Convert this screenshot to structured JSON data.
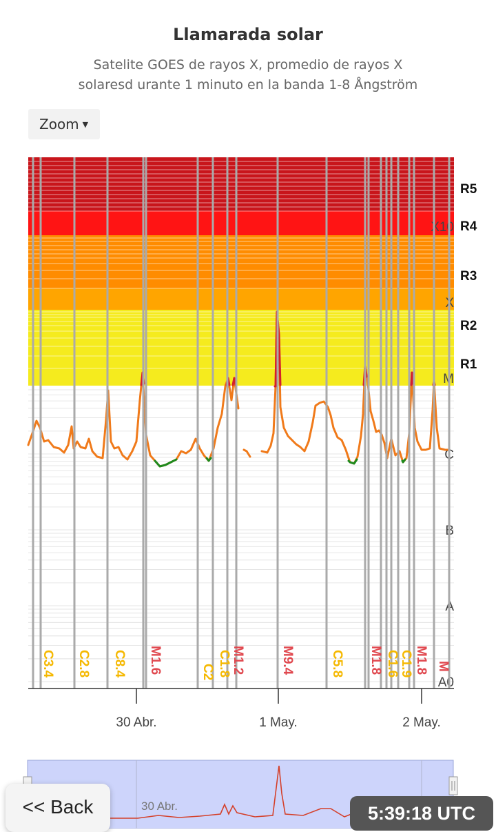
{
  "chart_data": {
    "type": "line",
    "title": "Llamarada solar",
    "subtitle_line1": "Satelite GOES de rayos X, promedio de rayos X",
    "subtitle_line2": "solaresd urante 1 minuto en la banda 1-8 Ångström",
    "y_scale": "log",
    "ylim": [
      "A0",
      "X10+"
    ],
    "y_ticks": [
      "A0",
      "A",
      "B",
      "C",
      "M",
      "X",
      "X10"
    ],
    "r_levels": [
      "R1",
      "R2",
      "R3",
      "R4",
      "R5"
    ],
    "x_ticks": [
      "30 Abr.",
      "1 May.",
      "2 May."
    ],
    "grid": true,
    "colors": {
      "line": "#f07a1a",
      "line_above_m": "#d41f2a",
      "line_low": "#1e8a1e",
      "band_r5": "#c8151b",
      "band_r4": "#ff1414",
      "band_r3": "#ff8c00",
      "band_r2": "#ffa500",
      "band_r1": "#f5eb1e",
      "flare_c_label": "#f5b800",
      "flare_m_label": "#e0484f",
      "event_line": "#aaaaaa"
    },
    "series": [
      {
        "values_class": [
          [
            "C3.0",
            0
          ],
          [
            "C3.9",
            1
          ],
          [
            "C2.7",
            2
          ],
          [
            "C3.8",
            3
          ],
          [
            "C3.1",
            4
          ],
          [
            "C2.8",
            5
          ],
          [
            "C2.6",
            6
          ],
          [
            "C2.3",
            7
          ],
          [
            "C2.6",
            8
          ],
          [
            "C2.2",
            9
          ],
          [
            "C2.4",
            10
          ],
          [
            "C2.0",
            11
          ],
          [
            "C3.3",
            12
          ],
          [
            "C2.3",
            13
          ],
          [
            "C2.4",
            14
          ],
          [
            "C2.1",
            15
          ],
          [
            "C2.6",
            16
          ],
          [
            "C2.1",
            17
          ],
          [
            "C1.9",
            18
          ],
          [
            "C1.8",
            19
          ],
          [
            "C8.4",
            20
          ],
          [
            "C2.2",
            21
          ],
          [
            "C2.8",
            22
          ],
          [
            "C2.0",
            23
          ],
          [
            "C1.8",
            24
          ],
          [
            "C2.6",
            25
          ],
          [
            "C1.7",
            26
          ],
          [
            "C1.6",
            27
          ],
          [
            "M1.6",
            28
          ],
          [
            "C2.2",
            29
          ],
          [
            "C1.6",
            30
          ],
          [
            "C1.3",
            31
          ],
          [
            "C1.2",
            32
          ],
          [
            "C1.3",
            33
          ],
          [
            "C1.4",
            34
          ],
          [
            "C1.7",
            35
          ],
          [
            "C1.5",
            36
          ],
          [
            "C2.0",
            37
          ],
          [
            "C1.9",
            38
          ],
          [
            "C2.6",
            39
          ],
          [
            "C1.6",
            40
          ],
          [
            "C1.5",
            41
          ],
          [
            "C2.1",
            42
          ],
          [
            "C1.8",
            43
          ],
          [
            "C1.6",
            44
          ],
          [
            "C1.5",
            45
          ],
          [
            "C2.7",
            46
          ],
          [
            "C3.8",
            47
          ],
          [
            "C1.2",
            48
          ],
          [
            "M1.2",
            49
          ],
          [
            "C5.5",
            50
          ],
          [
            "M1.1",
            51
          ],
          [
            "C4.4",
            52
          ]
        ]
      }
    ],
    "flare_labels": [
      {
        "label": "C3.4",
        "class": "C"
      },
      {
        "label": "C2.8",
        "class": "C"
      },
      {
        "label": "C8.4",
        "class": "C"
      },
      {
        "label": "M1.6",
        "class": "M"
      },
      {
        "label": "C2",
        "class": "C"
      },
      {
        "label": "C1.8",
        "class": "C"
      },
      {
        "label": "M1.2",
        "class": "M"
      },
      {
        "label": "M9.4",
        "class": "M"
      },
      {
        "label": "C5.8",
        "class": "C"
      },
      {
        "label": "M1.8",
        "class": "M"
      },
      {
        "label": "C1.6",
        "class": "C"
      },
      {
        "label": "C1.9",
        "class": "C"
      },
      {
        "label": "M1.8",
        "class": "M"
      },
      {
        "label": "M",
        "class": "M"
      }
    ]
  },
  "controls": {
    "zoom_label": "Zoom"
  },
  "navigator": {
    "date_label": "30 Abr."
  },
  "overlay": {
    "back_label": "<< Back",
    "clock": "5:39:18 UTC"
  }
}
